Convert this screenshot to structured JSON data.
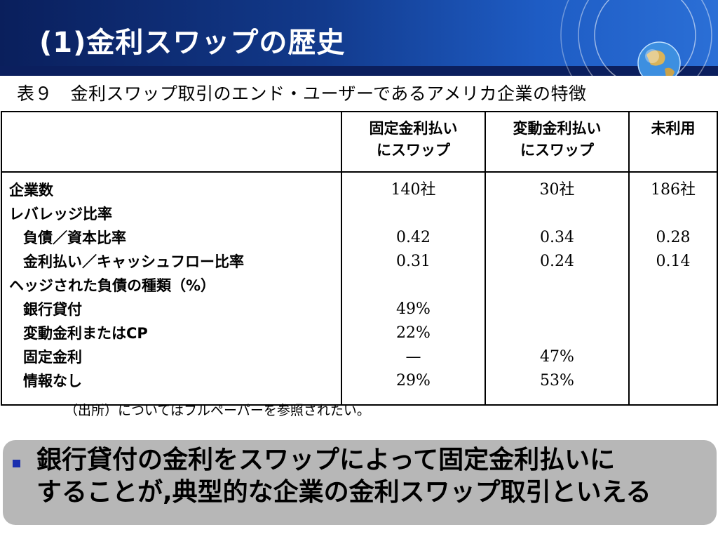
{
  "slide": {
    "title": "(1)金利スワップの歴史"
  },
  "table": {
    "caption": "表９　金利スワップ取引のエンド・ユーザーであるアメリカ企業の特徴",
    "headers": [
      "",
      "固定金利払いにスワップ",
      "変動金利払いにスワップ",
      "未利用"
    ],
    "header_lines": {
      "col1": [
        "固定金利払い",
        "にスワップ"
      ],
      "col2": [
        "変動金利払い",
        "にスワップ"
      ],
      "col3": [
        "未利用"
      ]
    },
    "rows": [
      {
        "label": "企業数",
        "indent": false,
        "values": [
          "140社",
          "30社",
          "186社"
        ]
      },
      {
        "label": "レバレッジ比率",
        "indent": false,
        "values": [
          "",
          "",
          ""
        ]
      },
      {
        "label": "負債／資本比率",
        "indent": true,
        "values": [
          "0.42",
          "0.34",
          "0.28"
        ]
      },
      {
        "label": "金利払い／キャッシュフロー比率",
        "indent": true,
        "values": [
          "0.31",
          "0.24",
          "0.14"
        ]
      },
      {
        "label": "ヘッジされた負債の種類（%）",
        "indent": false,
        "values": [
          "",
          "",
          ""
        ]
      },
      {
        "label": "銀行貸付",
        "indent": true,
        "values": [
          "49%",
          "",
          ""
        ]
      },
      {
        "label": "変動金利またはCP",
        "indent": true,
        "values": [
          "22%",
          "",
          ""
        ]
      },
      {
        "label": "固定金利",
        "indent": true,
        "values": [
          "—",
          "47%",
          ""
        ]
      },
      {
        "label": "情報なし",
        "indent": true,
        "values": [
          "29%",
          "53%",
          ""
        ]
      }
    ],
    "source": "（出所）についてはフルペーパーを参照されたい。"
  },
  "callout": {
    "lines": [
      "銀行貸付の金利をスワップによって固定金利払いに",
      "することが,典型的な企業の金利スワップ取引といえる"
    ]
  },
  "colors": {
    "header_dark": "#0a1f5c",
    "header_light": "#2b6fd6",
    "callout_bg": "#b7b7b7",
    "bullet": "#1a2fae"
  },
  "icons": {
    "header_decoration": "globe-icon",
    "bullet": "square-bullet-icon"
  }
}
